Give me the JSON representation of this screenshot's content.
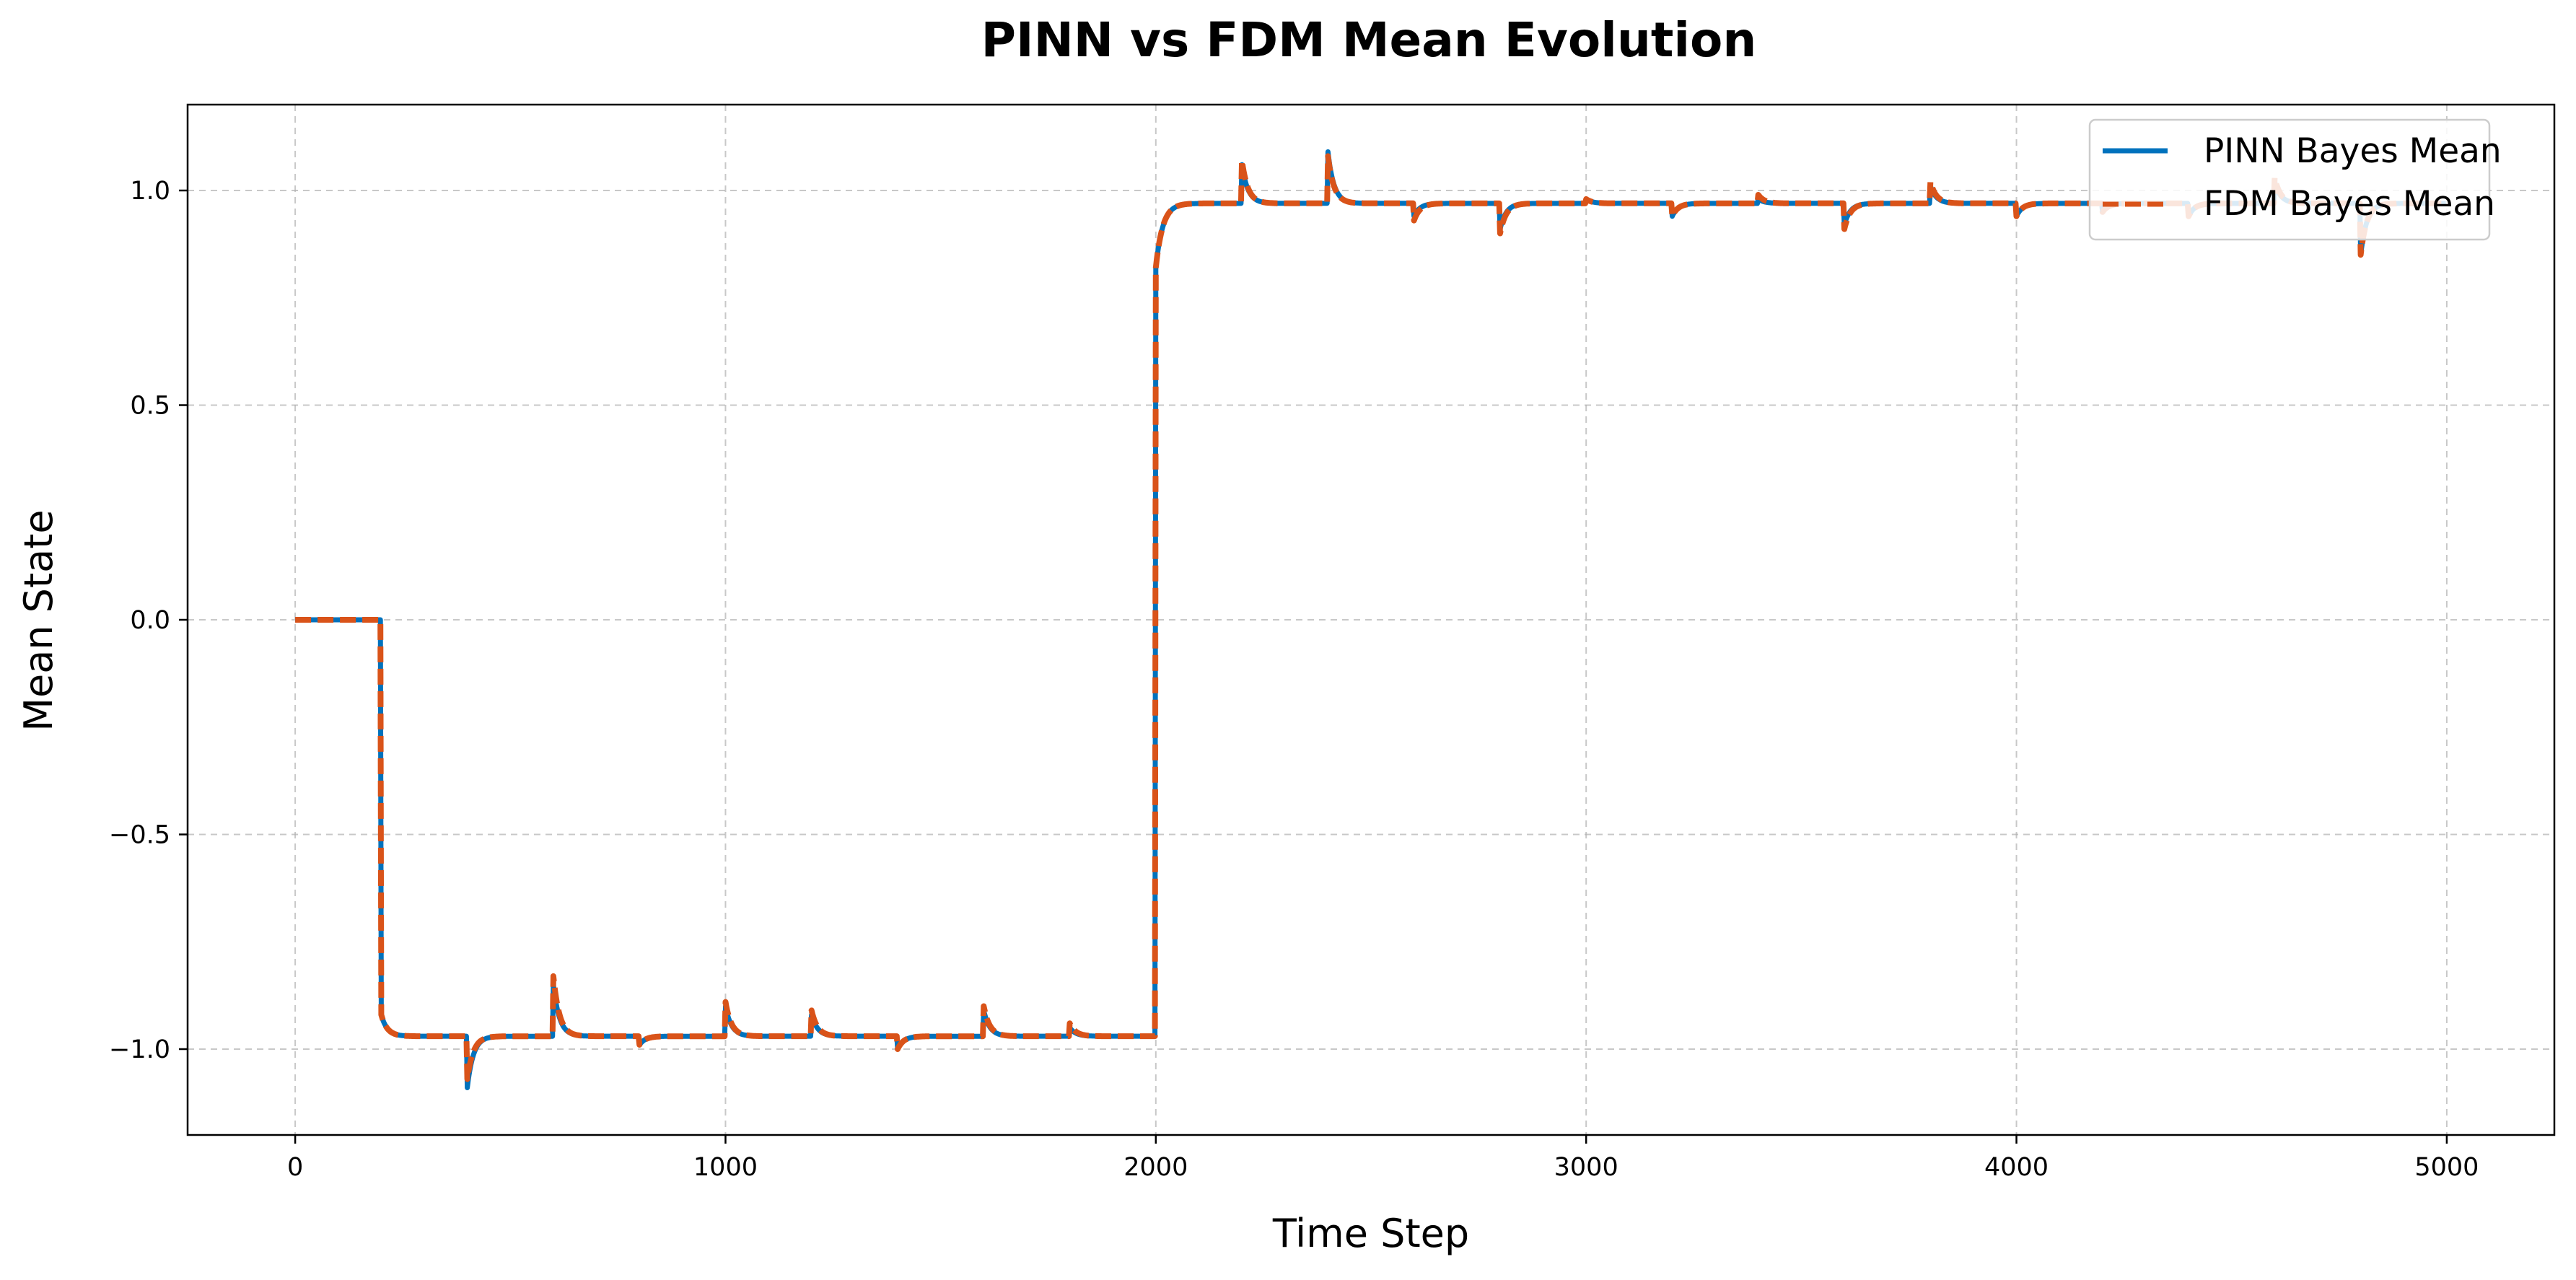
{
  "chart_data": {
    "type": "line",
    "title": "PINN vs FDM Mean Evolution",
    "xlabel": "Time Step",
    "ylabel": "Mean State",
    "xlim": [
      -250,
      5250
    ],
    "ylim": [
      -1.2,
      1.2
    ],
    "xticks": [
      0,
      1000,
      2000,
      3000,
      4000,
      5000
    ],
    "xtick_labels": [
      "0",
      "1000",
      "2000",
      "3000",
      "4000",
      "5000"
    ],
    "yticks": [
      -1.0,
      -0.5,
      0.0,
      0.5,
      1.0
    ],
    "ytick_labels": [
      "−1.0",
      "−0.5",
      "0.0",
      "0.5",
      "1.0"
    ],
    "grid": true,
    "legend_position": "upper right",
    "steady_levels": {
      "initial": 0.0,
      "low": -0.97,
      "high": 0.97
    },
    "regime_changes": [
      {
        "t": 200,
        "from": 0.0,
        "to": -0.97
      },
      {
        "t": 2000,
        "from": -0.97,
        "to": 0.97
      }
    ],
    "end_step": 4999,
    "series": [
      {
        "name": "PINN Bayes Mean",
        "color": "#0072BD",
        "style": "solid",
        "events": [
          {
            "t": 400,
            "amp": -0.12
          },
          {
            "t": 600,
            "amp": 0.12
          },
          {
            "t": 800,
            "amp": -0.02
          },
          {
            "t": 1000,
            "amp": 0.07
          },
          {
            "t": 1200,
            "amp": 0.05
          },
          {
            "t": 1400,
            "amp": -0.03
          },
          {
            "t": 1600,
            "amp": 0.06
          },
          {
            "t": 1800,
            "amp": 0.02
          },
          {
            "t": 2200,
            "amp": 0.09
          },
          {
            "t": 2400,
            "amp": 0.12
          },
          {
            "t": 2600,
            "amp": -0.03
          },
          {
            "t": 2800,
            "amp": -0.06
          },
          {
            "t": 3000,
            "amp": 0.01
          },
          {
            "t": 3200,
            "amp": -0.03
          },
          {
            "t": 3400,
            "amp": 0.01
          },
          {
            "t": 3600,
            "amp": -0.05
          },
          {
            "t": 3800,
            "amp": 0.04
          },
          {
            "t": 4000,
            "amp": -0.03
          },
          {
            "t": 4200,
            "amp": -0.02
          },
          {
            "t": 4400,
            "amp": -0.03
          },
          {
            "t": 4600,
            "amp": 0.05
          },
          {
            "t": 4800,
            "amp": -0.12
          }
        ]
      },
      {
        "name": "FDM Bayes Mean",
        "color": "#D95319",
        "style": "dashed",
        "events": [
          {
            "t": 400,
            "amp": -0.1
          },
          {
            "t": 600,
            "amp": 0.14
          },
          {
            "t": 800,
            "amp": -0.02
          },
          {
            "t": 1000,
            "amp": 0.08
          },
          {
            "t": 1200,
            "amp": 0.06
          },
          {
            "t": 1400,
            "amp": -0.03
          },
          {
            "t": 1600,
            "amp": 0.07
          },
          {
            "t": 1800,
            "amp": 0.03
          },
          {
            "t": 2200,
            "amp": 0.1
          },
          {
            "t": 2400,
            "amp": 0.11
          },
          {
            "t": 2600,
            "amp": -0.04
          },
          {
            "t": 2800,
            "amp": -0.07
          },
          {
            "t": 3000,
            "amp": 0.01
          },
          {
            "t": 3200,
            "amp": -0.03
          },
          {
            "t": 3400,
            "amp": 0.02
          },
          {
            "t": 3600,
            "amp": -0.06
          },
          {
            "t": 3800,
            "amp": 0.05
          },
          {
            "t": 4000,
            "amp": -0.03
          },
          {
            "t": 4200,
            "amp": -0.02
          },
          {
            "t": 4400,
            "amp": -0.03
          },
          {
            "t": 4600,
            "amp": 0.06
          },
          {
            "t": 4800,
            "amp": -0.12
          }
        ]
      }
    ]
  }
}
